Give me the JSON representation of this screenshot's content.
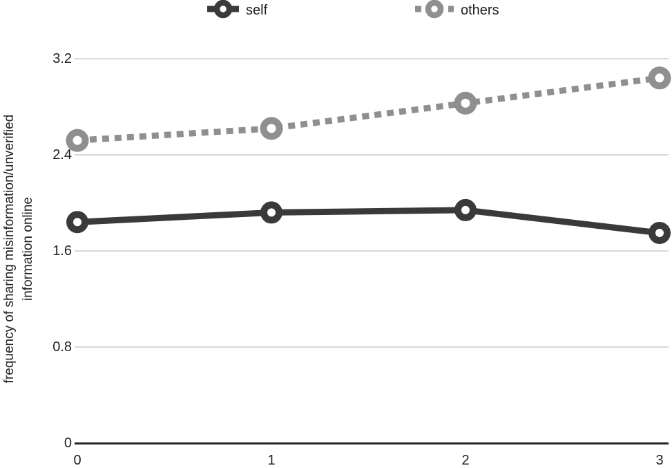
{
  "legend": {
    "items": [
      {
        "label": "self",
        "color": "#3a3a3a",
        "style": "solid"
      },
      {
        "label": "others",
        "color": "#8f8f8f",
        "style": "dashed"
      }
    ]
  },
  "y_axis": {
    "title_line1": "frequency of sharing misinformation/unverified",
    "title_line2": "information online",
    "ticks": [
      "3.2",
      "2.4",
      "1.6",
      "0.8",
      "0"
    ]
  },
  "x_axis": {
    "ticks": [
      "0",
      "1",
      "2",
      "3"
    ]
  },
  "chart_data": {
    "type": "line",
    "x": [
      0,
      1,
      2,
      3
    ],
    "series": [
      {
        "name": "self",
        "values": [
          1.84,
          1.92,
          1.94,
          1.75
        ],
        "color": "#3a3a3a",
        "style": "solid"
      },
      {
        "name": "others",
        "values": [
          2.52,
          2.62,
          2.83,
          3.04
        ],
        "color": "#8f8f8f",
        "style": "dashed"
      }
    ],
    "title": "",
    "xlabel": "",
    "ylabel": "frequency of sharing misinformation/unverified information online",
    "ylim": [
      0,
      3.2
    ],
    "yticks": [
      0,
      0.8,
      1.6,
      2.4,
      3.2
    ],
    "grid": "horizontal",
    "legend_position": "top",
    "colors": {
      "gridline": "#d9d9d9",
      "axis": "#262626",
      "text": "#1f1f1f",
      "marker_fill": "#ffffff"
    }
  }
}
